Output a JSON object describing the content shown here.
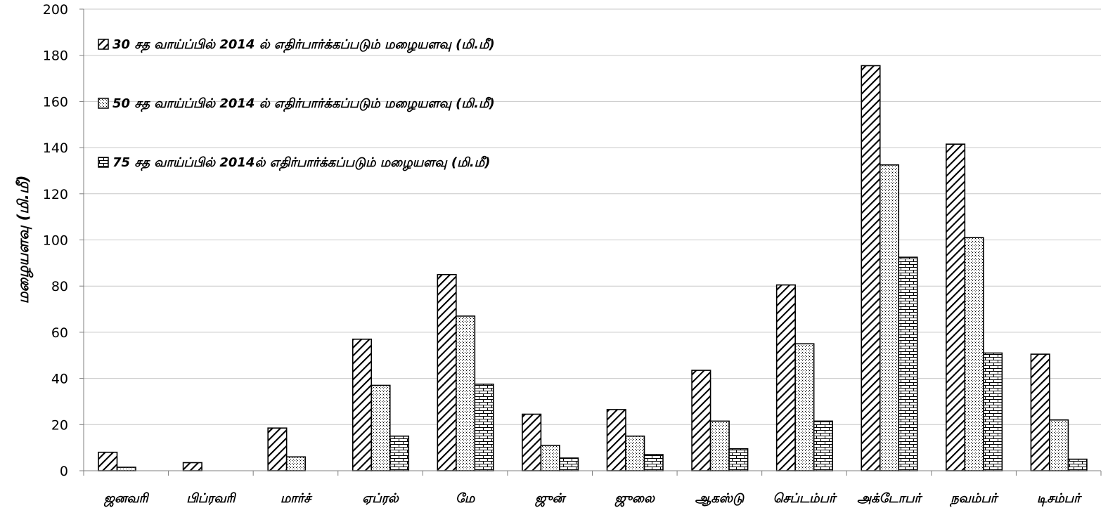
{
  "chart_data": {
    "type": "bar",
    "ylabel": "மழையளவு (மி.மீ)",
    "xlabel": "",
    "ylim": [
      0,
      200
    ],
    "yticks": [
      0,
      20,
      40,
      60,
      80,
      100,
      120,
      140,
      160,
      180,
      200
    ],
    "grid": true,
    "legend_position": "top-left",
    "categories": [
      "ஜனவரி",
      "பிப்ரவரி",
      "மார்ச்",
      "ஏப்ரல்",
      "மே",
      "ஜுன்",
      "ஜுலை",
      "ஆகஸ்டு",
      "செப்டம்பர்",
      "அக்டோபர்",
      "நவம்பர்",
      "டிசம்பர்"
    ],
    "series": [
      {
        "name": "30 சத வாய்ப்பில் 2014 ல் எதிர்பார்க்கப்படும் மழையளவு (மி.மீ)",
        "pattern": "diagonal",
        "values": [
          8,
          3.5,
          18.5,
          57,
          85,
          24.5,
          26.5,
          43.5,
          80.5,
          175.5,
          141.5,
          50.5
        ]
      },
      {
        "name": "50 சத வாய்ப்பில் 2014 ல் எதிர்பார்க்கப்படும் மழையளவு (மி.மீ)",
        "pattern": "dotted",
        "values": [
          1.5,
          0,
          6,
          37,
          67,
          11,
          15,
          21.5,
          55,
          132.5,
          101,
          22
        ]
      },
      {
        "name": "75 சத வாய்ப்பில் 2014ல் எதிர்பார்க்கப்படும் மழையளவு (மி.மீ)",
        "pattern": "brick",
        "values": [
          0,
          0,
          0,
          15,
          37.5,
          5.5,
          7,
          9.5,
          21.5,
          92.5,
          51,
          5
        ]
      }
    ],
    "colors": {
      "bar_fill": "#ffffff",
      "bar_stroke": "#000000",
      "grid": "#c8c8c8",
      "axis": "#7f7f7f"
    }
  }
}
